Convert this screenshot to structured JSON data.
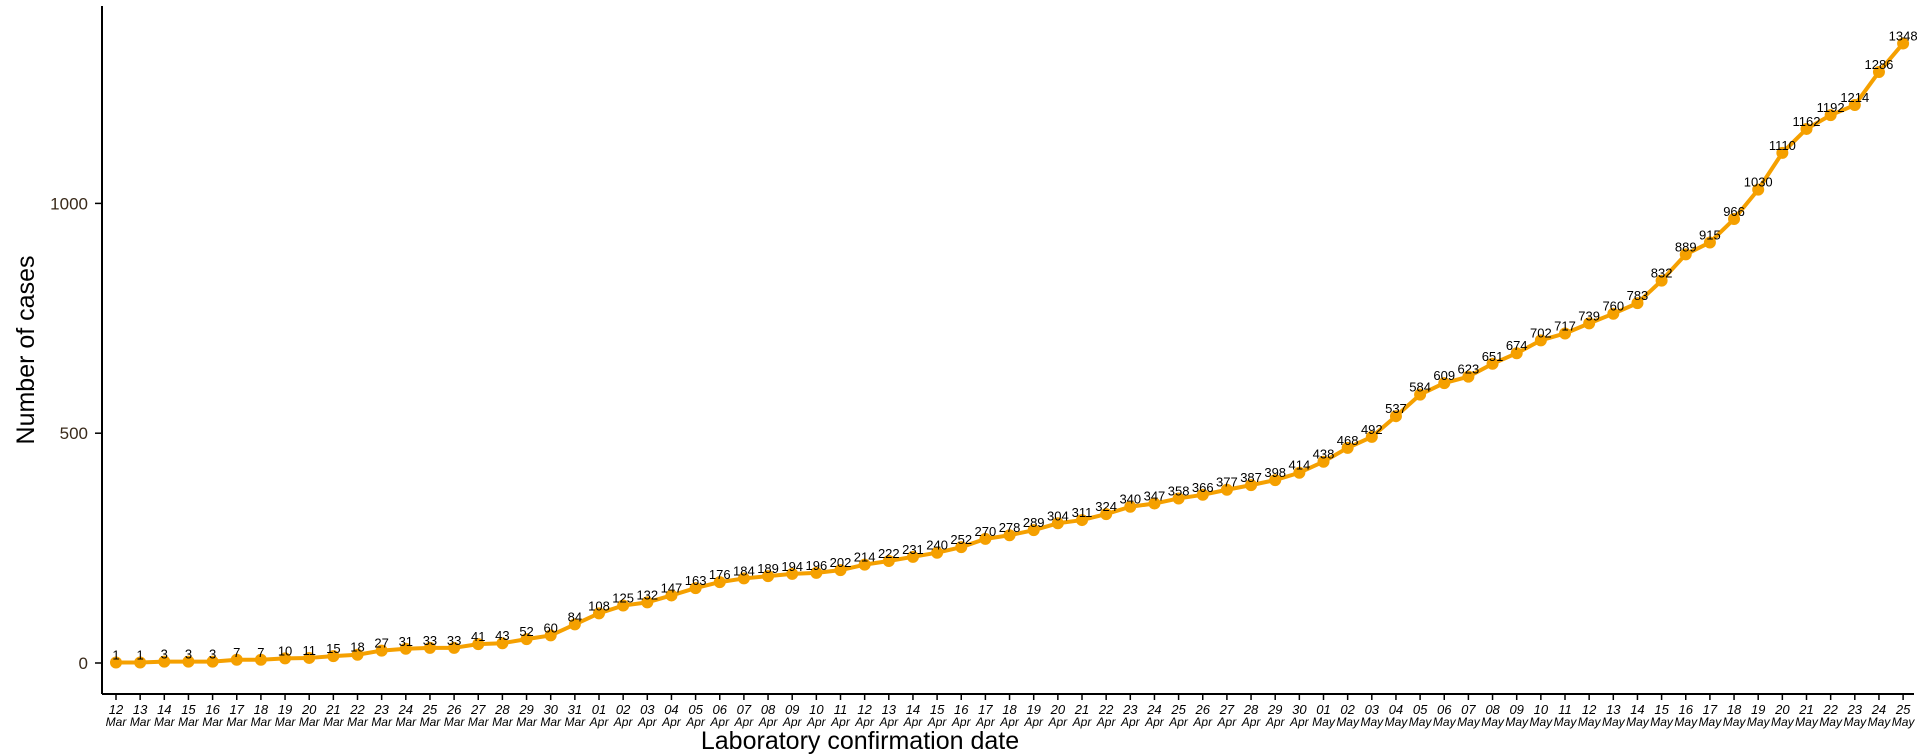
{
  "chart_data": {
    "type": "line",
    "title": "",
    "xlabel": "Laboratory confirmation date",
    "ylabel": "Number of cases",
    "ylim": [
      0,
      1348
    ],
    "yticks": [
      0,
      500,
      1000
    ],
    "ytick_labels": [
      "0",
      "500",
      "1000"
    ],
    "grid": false,
    "legend": "none",
    "line_color": "#f5a000",
    "marker_color": "#f5a000",
    "x_days": [
      "12",
      "13",
      "14",
      "15",
      "16",
      "17",
      "18",
      "19",
      "20",
      "21",
      "22",
      "23",
      "24",
      "25",
      "26",
      "27",
      "28",
      "29",
      "30",
      "31",
      "01",
      "02",
      "03",
      "04",
      "05",
      "06",
      "07",
      "08",
      "09",
      "10",
      "11",
      "12",
      "13",
      "14",
      "15",
      "16",
      "17",
      "18",
      "19",
      "20",
      "21",
      "22",
      "23",
      "24",
      "25",
      "26",
      "27",
      "28",
      "29",
      "30",
      "01",
      "02",
      "03",
      "04",
      "05",
      "06",
      "07",
      "08",
      "09",
      "10",
      "11",
      "12",
      "13",
      "14",
      "15",
      "16",
      "17",
      "18",
      "19",
      "20",
      "21",
      "22",
      "23",
      "24",
      "25"
    ],
    "x_months": [
      "Mar",
      "Mar",
      "Mar",
      "Mar",
      "Mar",
      "Mar",
      "Mar",
      "Mar",
      "Mar",
      "Mar",
      "Mar",
      "Mar",
      "Mar",
      "Mar",
      "Mar",
      "Mar",
      "Mar",
      "Mar",
      "Mar",
      "Mar",
      "Apr",
      "Apr",
      "Apr",
      "Apr",
      "Apr",
      "Apr",
      "Apr",
      "Apr",
      "Apr",
      "Apr",
      "Apr",
      "Apr",
      "Apr",
      "Apr",
      "Apr",
      "Apr",
      "Apr",
      "Apr",
      "Apr",
      "Apr",
      "Apr",
      "Apr",
      "Apr",
      "Apr",
      "Apr",
      "Apr",
      "Apr",
      "Apr",
      "Apr",
      "Apr",
      "May",
      "May",
      "May",
      "May",
      "May",
      "May",
      "May",
      "May",
      "May",
      "May",
      "May",
      "May",
      "May",
      "May",
      "May",
      "May",
      "May",
      "May",
      "May",
      "May",
      "May",
      "May",
      "May",
      "May",
      "May"
    ],
    "series": [
      {
        "values": [
          1,
          1,
          3,
          3,
          3,
          7,
          7,
          10,
          11,
          15,
          18,
          27,
          31,
          33,
          33,
          41,
          43,
          52,
          60,
          84,
          108,
          125,
          132,
          147,
          163,
          176,
          184,
          189,
          194,
          196,
          202,
          214,
          222,
          231,
          240,
          252,
          270,
          278,
          289,
          304,
          311,
          324,
          340,
          347,
          358,
          366,
          377,
          387,
          398,
          414,
          438,
          468,
          492,
          537,
          584,
          609,
          623,
          651,
          674,
          702,
          717,
          739,
          760,
          783,
          832,
          889,
          915,
          966,
          1030,
          1110,
          1162,
          1192,
          1214,
          1286,
          1348
        ]
      }
    ]
  }
}
